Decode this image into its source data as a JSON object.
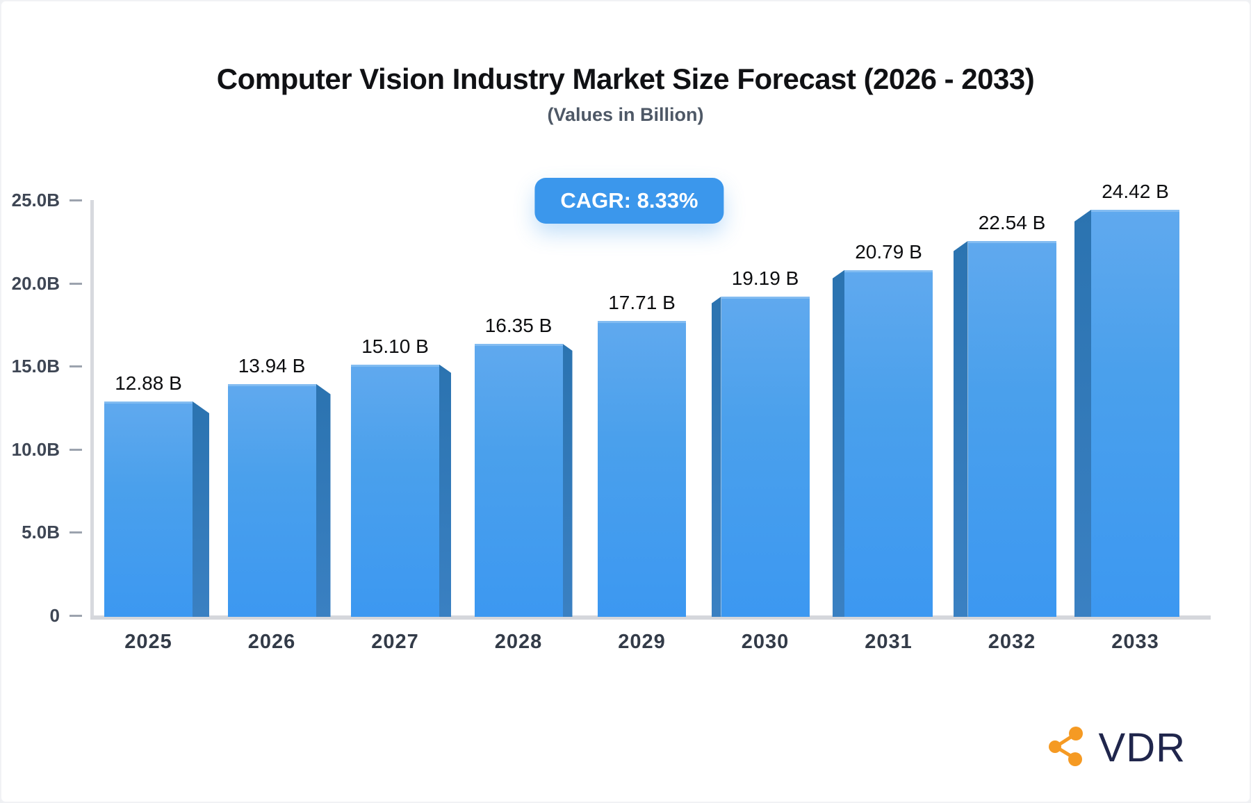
{
  "header": {
    "title": "Computer Vision Industry Market Size Forecast (2026 - 2033)",
    "subtitle": "(Values in Billion)"
  },
  "badge": {
    "label": "CAGR: 8.33%"
  },
  "chart_data": {
    "type": "bar",
    "title": "Computer Vision Industry Market Size Forecast (2026 - 2033)",
    "subtitle": "(Values in Billion)",
    "annotation": "CAGR: 8.33%",
    "categories": [
      "2025",
      "2026",
      "2027",
      "2028",
      "2029",
      "2030",
      "2031",
      "2032",
      "2033"
    ],
    "values": [
      12.88,
      13.94,
      15.1,
      16.35,
      17.71,
      19.19,
      20.79,
      22.54,
      24.42
    ],
    "value_labels": [
      "12.88 B",
      "13.94 B",
      "15.10 B",
      "16.35 B",
      "17.71 B",
      "19.19 B",
      "20.79 B",
      "22.54 B",
      "24.42 B"
    ],
    "unit": "B",
    "xlabel": "",
    "ylabel": "",
    "ylim": [
      0,
      25
    ],
    "yticks": [
      {
        "value": 25,
        "label": "25.0B"
      },
      {
        "value": 20,
        "label": "20.0B"
      },
      {
        "value": 15,
        "label": "15.0B"
      },
      {
        "value": 10,
        "label": "10.0B"
      },
      {
        "value": 5,
        "label": "5.0B"
      },
      {
        "value": 0,
        "label": "0"
      }
    ],
    "grid": false,
    "legend": null,
    "style": "3d-perspective-bars",
    "colors": {
      "bar_front_top": "#60a9ee",
      "bar_front_bottom": "#3c98f1",
      "bar_side": "#2f7bb9",
      "axis": "#d5d7dc",
      "badge_bg": "#3b97ec",
      "badge_text": "#ffffff",
      "value_label": "#0d0e10",
      "tick_label": "#3e4654",
      "category_label": "#333b48"
    }
  },
  "branding": {
    "logo_text": "VDR",
    "logo_icon": "share-network-icon",
    "icon_color": "#f59a23",
    "text_color": "#20264c"
  }
}
